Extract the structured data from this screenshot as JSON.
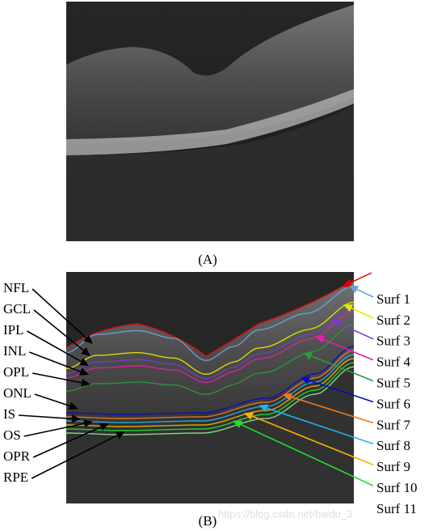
{
  "panels": [
    {
      "label": "(A)"
    },
    {
      "label": "(B)",
      "layers": [
        "NFL",
        "GCL",
        "IPL",
        "INL",
        "OPL",
        "ONL",
        "IS",
        "OS",
        "OPR",
        "RPE"
      ],
      "surfaces": [
        {
          "name": "Surf 1",
          "color": "#6fa3d6"
        },
        {
          "name": "Surf 2",
          "color": "#e8e800"
        },
        {
          "name": "Surf 3",
          "color": "#7a3cc8"
        },
        {
          "name": "Surf 4",
          "color": "#e020a8"
        },
        {
          "name": "Surf 5",
          "color": "#2e9a3a"
        },
        {
          "name": "Surf 6",
          "color": "#0a0ac0"
        },
        {
          "name": "Surf 7",
          "color": "#f07a20"
        },
        {
          "name": "Surf 8",
          "color": "#20b4f0"
        },
        {
          "name": "Surf 9",
          "color": "#f5b400"
        },
        {
          "name": "Surf 10",
          "color": "#20e030"
        },
        {
          "name": "Surf 11",
          "color": "#90e890"
        }
      ]
    }
  ],
  "watermark": "https://blog.csdn.net/baidu_3"
}
